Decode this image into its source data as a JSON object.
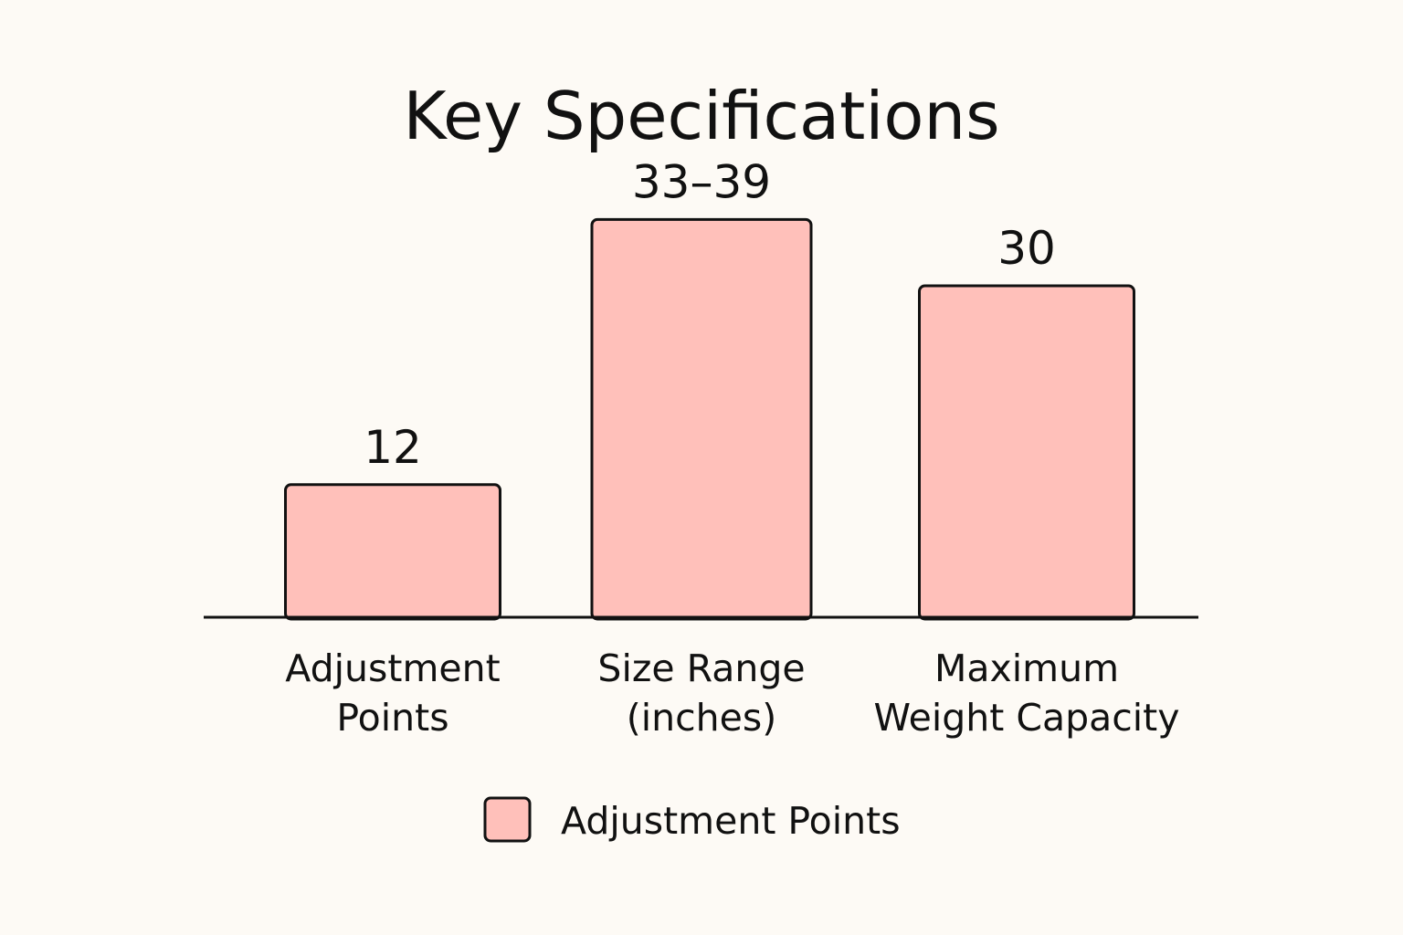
{
  "chart_data": {
    "type": "bar",
    "title": "Key Specifications",
    "categories": [
      [
        "Adjustment",
        "Points"
      ],
      [
        "Size Range",
        "(inches)"
      ],
      [
        "Maximum",
        "Weight Capacity"
      ]
    ],
    "values": [
      12,
      36,
      30
    ],
    "value_labels": [
      "12",
      "33–39",
      "30"
    ],
    "xlabel": "",
    "ylabel": "",
    "grid": false,
    "legend": {
      "position": "bottom-center",
      "entries": [
        {
          "name": "Adjustment Points",
          "color": "#FFC0BA"
        }
      ]
    },
    "colors": {
      "bar_fill": "#FFC0BA",
      "bar_stroke": "#111111",
      "background": "#FDFAF5",
      "text": "#111111"
    }
  }
}
